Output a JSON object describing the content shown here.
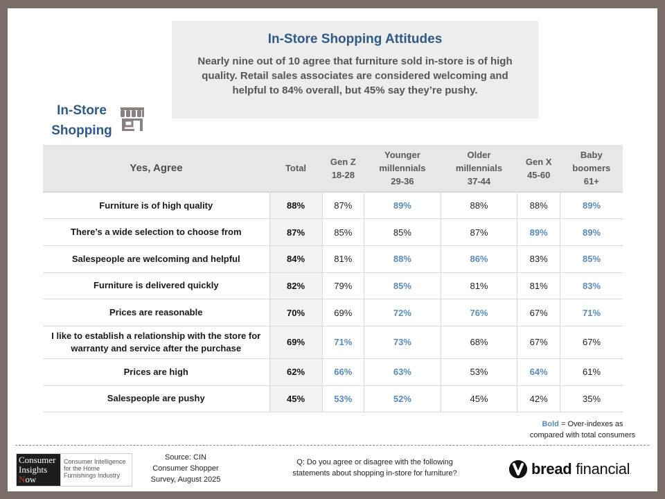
{
  "headline": {
    "title": "In-Store Shopping Attitudes",
    "subtitle": "Nearly nine out of 10 agree that furniture sold in-store is of high quality. Retail sales associates are considered welcoming and helpful to 84% overall, but 45% say they’re pushy."
  },
  "section": {
    "label_line1": "In-Store",
    "label_line2": "Shopping",
    "icon": "storefront-icon"
  },
  "table": {
    "row_header": "Yes, Agree",
    "columns": [
      {
        "line1": "Total",
        "line2": "",
        "line3": ""
      },
      {
        "line1": "Gen Z",
        "line2": "18-28",
        "line3": ""
      },
      {
        "line1": "Younger",
        "line2": "millennials",
        "line3": "29-36"
      },
      {
        "line1": "Older",
        "line2": "millennials",
        "line3": "37-44"
      },
      {
        "line1": "Gen X",
        "line2": "45-60",
        "line3": ""
      },
      {
        "line1": "Baby",
        "line2": "boomers",
        "line3": "61+"
      }
    ],
    "rows": [
      {
        "statement": "Furniture is of high quality",
        "total": "88%",
        "values": [
          "87%",
          "89%",
          "88%",
          "88%",
          "89%"
        ],
        "bold": [
          false,
          true,
          false,
          false,
          true
        ]
      },
      {
        "statement": "There’s a wide selection to choose from",
        "total": "87%",
        "values": [
          "85%",
          "85%",
          "87%",
          "89%",
          "89%"
        ],
        "bold": [
          false,
          false,
          false,
          true,
          true
        ]
      },
      {
        "statement": "Salespeople are welcoming and helpful",
        "total": "84%",
        "values": [
          "81%",
          "88%",
          "86%",
          "83%",
          "85%"
        ],
        "bold": [
          false,
          true,
          true,
          false,
          true
        ]
      },
      {
        "statement": "Furniture is delivered quickly",
        "total": "82%",
        "values": [
          "79%",
          "85%",
          "81%",
          "81%",
          "83%"
        ],
        "bold": [
          false,
          true,
          false,
          false,
          true
        ]
      },
      {
        "statement": "Prices are reasonable",
        "total": "70%",
        "values": [
          "69%",
          "72%",
          "76%",
          "67%",
          "71%"
        ],
        "bold": [
          false,
          true,
          true,
          false,
          true
        ]
      },
      {
        "statement": "I like to establish a relationship with the store for warranty and service after the purchase",
        "total": "69%",
        "values": [
          "71%",
          "73%",
          "68%",
          "67%",
          "67%"
        ],
        "bold": [
          true,
          true,
          false,
          false,
          false
        ]
      },
      {
        "statement": "Prices are high",
        "total": "62%",
        "values": [
          "66%",
          "63%",
          "53%",
          "64%",
          "61%"
        ],
        "bold": [
          true,
          true,
          false,
          true,
          false
        ]
      },
      {
        "statement": "Salespeople are pushy",
        "total": "45%",
        "values": [
          "53%",
          "52%",
          "45%",
          "42%",
          "35%"
        ],
        "bold": [
          true,
          true,
          false,
          false,
          false
        ]
      }
    ]
  },
  "legend": {
    "bold_word": "Bold",
    "rest_line1": " = Over-indexes as",
    "line2": "compared with total consumers"
  },
  "footer": {
    "cin_logo": {
      "line1": "Consumer",
      "line2": "Insights",
      "line3_first": "N",
      "line3_rest": "ow",
      "tagline1": "Consumer Intelligence",
      "tagline2": "for the Home",
      "tagline3": "Furnishings Industry"
    },
    "source_line1": "Source: CIN",
    "source_line2": "Consumer Shopper",
    "source_line3": "Survey, August 2025",
    "question_line1": "Q: Do you agree or disagree with the following",
    "question_line2": "statements about shopping in-store for furniture?",
    "brand_bold": "bread",
    "brand_rest": " financial",
    "brand_dot": "."
  },
  "colors": {
    "frame": "#7b6e6a",
    "title_blue": "#2f5a86",
    "highlight_blue": "#5a8ab8",
    "header_gray": "#e8e6e6"
  }
}
